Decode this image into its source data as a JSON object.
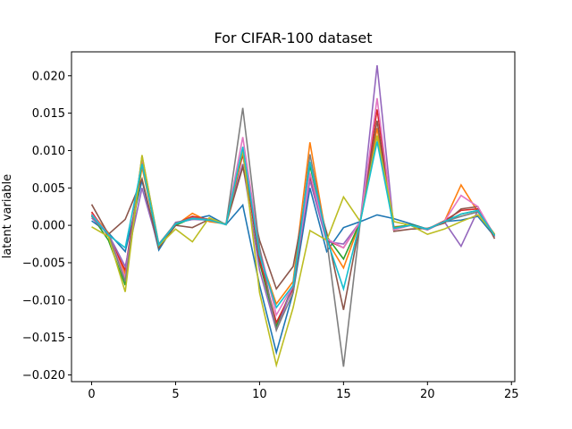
{
  "chart_data": {
    "type": "line",
    "title": "For CIFAR-100 dataset",
    "xlabel": "",
    "ylabel": "latent variable",
    "xlim": [
      -1.2,
      25.2
    ],
    "ylim": [
      -0.0209,
      0.0232
    ],
    "x_ticks": [
      0,
      5,
      10,
      15,
      20,
      25
    ],
    "y_ticks": [
      -0.02,
      -0.015,
      -0.01,
      -0.005,
      0.0,
      0.005,
      0.01,
      0.015,
      0.02
    ],
    "y_tick_labels": [
      "−0.020",
      "−0.015",
      "−0.010",
      "−0.005",
      "0.000",
      "0.005",
      "0.010",
      "0.015",
      "0.020"
    ],
    "grid": false,
    "legend": "none",
    "x": [
      0,
      1,
      2,
      3,
      4,
      5,
      6,
      7,
      8,
      9,
      10,
      11,
      12,
      13,
      14,
      15,
      16,
      17,
      18,
      19,
      20,
      21,
      22,
      23,
      24
    ],
    "series": [
      {
        "color": "#1f77b4",
        "values": [
          0.0006,
          -0.001,
          -0.0035,
          0.006,
          -0.0033,
          0.0003,
          0.0008,
          0.0013,
          0.0001,
          0.0027,
          -0.008,
          -0.017,
          -0.009,
          0.005,
          -0.0035,
          -0.0003,
          0.0005,
          0.0014,
          0.0009,
          0.0002,
          -0.0005,
          0.0005,
          0.0007,
          0.0012,
          -0.0015
        ]
      },
      {
        "color": "#ff7f0e",
        "values": [
          0.0016,
          -0.001,
          -0.0065,
          0.0078,
          -0.0027,
          0.0,
          0.0016,
          0.0005,
          0.0002,
          0.01,
          -0.004,
          -0.0105,
          -0.0075,
          0.0111,
          -0.002,
          -0.0057,
          0.0005,
          0.013,
          -0.0002,
          0.0,
          -0.0006,
          0.0005,
          0.0054,
          0.0018,
          -0.0012
        ]
      },
      {
        "color": "#2ca02c",
        "values": [
          0.0013,
          -0.002,
          -0.008,
          0.0085,
          -0.003,
          0.0,
          0.001,
          0.0008,
          0.0001,
          0.01,
          -0.005,
          -0.0135,
          -0.008,
          0.008,
          -0.0015,
          -0.0045,
          0.0005,
          0.012,
          -0.0003,
          0.0001,
          -0.0005,
          0.0004,
          0.0015,
          0.002,
          -0.0013
        ]
      },
      {
        "color": "#d62728",
        "values": [
          0.0018,
          -0.0015,
          -0.006,
          0.0088,
          -0.0028,
          0.0002,
          0.0012,
          0.0008,
          0.0001,
          0.0095,
          -0.0045,
          -0.013,
          -0.0085,
          0.0065,
          -0.002,
          -0.003,
          0.0005,
          0.0155,
          -0.0005,
          0.0,
          -0.0005,
          0.0006,
          0.002,
          0.0022,
          -0.0015
        ]
      },
      {
        "color": "#9467bd",
        "values": [
          0.001,
          -0.0012,
          -0.0055,
          0.005,
          -0.0029,
          0.0004,
          0.0008,
          0.0007,
          0.0002,
          0.0082,
          -0.006,
          -0.014,
          -0.008,
          0.006,
          -0.0022,
          -0.0025,
          0.0005,
          0.0214,
          -0.0004,
          0.0,
          -0.0006,
          0.0005,
          -0.0028,
          0.002,
          -0.0015
        ]
      },
      {
        "color": "#8c564b",
        "values": [
          0.0028,
          -0.0012,
          0.0008,
          0.0062,
          -0.003,
          0.0,
          -0.0003,
          0.0008,
          0.0001,
          0.0078,
          -0.002,
          -0.0085,
          -0.0055,
          0.0068,
          -0.001,
          -0.0113,
          0.0005,
          0.014,
          -0.0008,
          -0.0005,
          -0.0004,
          0.0003,
          0.0022,
          0.0025,
          -0.0018
        ]
      },
      {
        "color": "#e377c2",
        "values": [
          0.0015,
          -0.0012,
          -0.007,
          0.009,
          -0.0026,
          0.0003,
          0.001,
          0.0008,
          0.0001,
          0.0118,
          -0.003,
          -0.012,
          -0.008,
          0.007,
          -0.0018,
          -0.003,
          0.0005,
          0.017,
          -0.0006,
          0.0,
          -0.0005,
          0.0005,
          0.004,
          0.0025,
          -0.0014
        ]
      },
      {
        "color": "#7f7f7f",
        "values": [
          0.0012,
          -0.0012,
          -0.0075,
          0.0093,
          -0.0025,
          0.0003,
          0.001,
          0.0008,
          0.0001,
          0.0157,
          -0.003,
          -0.014,
          -0.009,
          0.0095,
          -0.002,
          -0.0189,
          0.0005,
          0.012,
          -0.0004,
          0.0,
          -0.0005,
          0.0005,
          0.0012,
          0.0018,
          -0.0012
        ]
      },
      {
        "color": "#bcbd22",
        "values": [
          -0.0002,
          -0.0015,
          -0.0089,
          0.0094,
          -0.0027,
          -0.0005,
          -0.0022,
          0.001,
          0.0001,
          0.01,
          -0.009,
          -0.0187,
          -0.011,
          -0.0007,
          -0.002,
          0.0038,
          0.0005,
          0.012,
          0.0005,
          0.0,
          -0.0012,
          -0.0005,
          0.0005,
          0.0014,
          -0.0012
        ]
      },
      {
        "color": "#17becf",
        "values": [
          0.0014,
          -0.0013,
          -0.003,
          0.0082,
          -0.0026,
          0.0002,
          0.0009,
          0.0007,
          0.0001,
          0.0105,
          -0.004,
          -0.011,
          -0.008,
          0.0085,
          -0.0018,
          -0.0085,
          0.0005,
          0.0112,
          -0.0004,
          0.0,
          -0.0005,
          0.0005,
          0.0015,
          0.002,
          -0.0014
        ]
      }
    ]
  }
}
